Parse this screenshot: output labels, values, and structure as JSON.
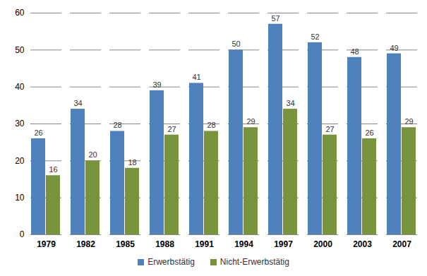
{
  "chart_data": {
    "type": "bar",
    "categories": [
      "1979",
      "1982",
      "1985",
      "1988",
      "1991",
      "1994",
      "1997",
      "2000",
      "2003",
      "2007"
    ],
    "series": [
      {
        "name": "Erwerbstätig",
        "color": "#4f81bd",
        "values": [
          26,
          34,
          28,
          39,
          41,
          50,
          57,
          52,
          48,
          49
        ]
      },
      {
        "name": "Nicht-Erwerbstätig",
        "color": "#77933c",
        "values": [
          16,
          20,
          18,
          27,
          28,
          29,
          34,
          27,
          26,
          29
        ]
      }
    ],
    "ylim": [
      0,
      60
    ],
    "yticks": [
      0,
      10,
      20,
      30,
      40,
      50,
      60
    ],
    "grid": true,
    "data_labels": true,
    "legend": "bottom"
  }
}
